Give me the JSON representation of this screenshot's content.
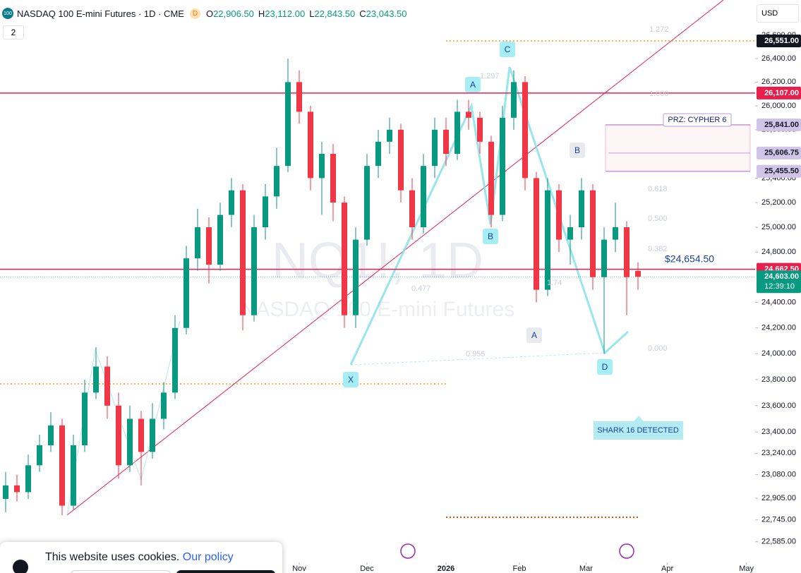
{
  "header": {
    "symbol_badge": "100",
    "title": "NASDAQ 100 E-mini Futures · 1D · CME",
    "delay_badge": "D",
    "ohlc": [
      {
        "key": "O",
        "value": "22,906.50"
      },
      {
        "key": "H",
        "value": "23,112.00"
      },
      {
        "key": "L",
        "value": "22,843.50"
      },
      {
        "key": "C",
        "value": "23,043.50"
      }
    ],
    "layout_count": "2",
    "currency": "USD"
  },
  "cookie": {
    "text": "This website uses cookies.",
    "link": "Our policy"
  },
  "chart_data": {
    "type": "candlestick",
    "watermark_symbol": "NQ1!, 1D",
    "watermark_name": "NASDAQ 100 E-mini Futures",
    "up_color": "#089981",
    "down_color": "#f23645",
    "log_scale": true,
    "grid": false,
    "open": [
      22900,
      23000,
      22950,
      23150,
      23300,
      23450,
      22850,
      23300,
      23700,
      23900,
      23600,
      23150,
      23500,
      23250,
      23500,
      23700,
      24200,
      24750,
      25000,
      24700,
      25100,
      25300,
      24300,
      25000,
      25250,
      25500,
      26200,
      25950,
      25400,
      25600,
      25200,
      24300,
      24900,
      25500,
      25700,
      25800,
      25300,
      25000,
      25500,
      25800,
      25600,
      25950,
      25900,
      25700,
      25100,
      25900,
      26200,
      25400,
      24500,
      25300,
      24900,
      25000,
      25300,
      24600,
      24900,
      25000,
      24650
    ],
    "high": [
      23100,
      23080,
      23230,
      23380,
      23550,
      23500,
      23380,
      23800,
      24050,
      23980,
      23700,
      23600,
      23560,
      23620,
      23780,
      24300,
      24850,
      25150,
      25080,
      25200,
      25400,
      25350,
      25100,
      25350,
      25650,
      26400,
      26300,
      26000,
      25700,
      25680,
      25250,
      25000,
      25600,
      25800,
      25900,
      25850,
      25400,
      25600,
      25900,
      25900,
      26050,
      26050,
      25950,
      25750,
      26000,
      26300,
      26250,
      25450,
      25400,
      25350,
      25100,
      25400,
      25350,
      25000,
      25200,
      25050,
      24720
    ],
    "low": [
      22800,
      22880,
      22900,
      23100,
      23250,
      22780,
      22820,
      23250,
      23650,
      23500,
      23050,
      23100,
      23000,
      23200,
      23420,
      23650,
      24150,
      24650,
      24550,
      24650,
      25000,
      24180,
      24250,
      24900,
      25150,
      25450,
      25850,
      25300,
      25100,
      25050,
      24200,
      24200,
      24850,
      25400,
      25600,
      25200,
      24900,
      24950,
      25400,
      25500,
      25550,
      25800,
      25600,
      25000,
      25050,
      25800,
      25300,
      24400,
      24450,
      24800,
      24700,
      24900,
      24500,
      24000,
      24800,
      24300,
      24500
    ],
    "close": [
      23000,
      22950,
      23150,
      23300,
      23450,
      22850,
      23300,
      23700,
      23900,
      23600,
      23150,
      23500,
      23250,
      23500,
      23700,
      24200,
      24750,
      25000,
      24700,
      25100,
      25300,
      24300,
      25000,
      25250,
      25500,
      26200,
      25950,
      25400,
      25600,
      25200,
      24300,
      24900,
      25500,
      25700,
      25800,
      25300,
      25000,
      25500,
      25800,
      25600,
      25950,
      25900,
      25700,
      25100,
      25900,
      26200,
      25400,
      24500,
      25300,
      24900,
      25000,
      25300,
      24600,
      24900,
      25000,
      24600,
      24603
    ],
    "xlim": [
      -0.5,
      66.375
    ],
    "xticks": [
      {
        "value": 26,
        "label": "Nov"
      },
      {
        "value": 32,
        "label": "Dec"
      },
      {
        "value": 39,
        "label": "2026"
      },
      {
        "value": 45.5,
        "label": "Feb"
      },
      {
        "value": 51.4,
        "label": "Mar"
      },
      {
        "value": 58.6,
        "label": "Apr"
      },
      {
        "value": 65.6,
        "label": "May"
      }
    ],
    "ylim": [
      22440,
      26904
    ],
    "yticks": [
      {
        "value": 26600,
        "label": "26,600.00"
      },
      {
        "value": 26400,
        "label": "26,400.00"
      },
      {
        "value": 26200,
        "label": "26,200.00"
      },
      {
        "value": 26000,
        "label": "26,000.00"
      },
      {
        "value": 25800,
        "label": "25,800.00"
      },
      {
        "value": 25400,
        "label": "25,400.00"
      },
      {
        "value": 25200,
        "label": "25,200.00"
      },
      {
        "value": 25000,
        "label": "25,000.00"
      },
      {
        "value": 24800,
        "label": "24,800.00"
      },
      {
        "value": 24400,
        "label": "24,400.00"
      },
      {
        "value": 24200,
        "label": "24,200.00"
      },
      {
        "value": 24000,
        "label": "24,000.00"
      },
      {
        "value": 23800,
        "label": "23,800.00"
      },
      {
        "value": 23600,
        "label": "23,600.00"
      },
      {
        "value": 23400,
        "label": "23,400.00"
      },
      {
        "value": 23240,
        "label": "23,240.00"
      },
      {
        "value": 23080,
        "label": "23,080.00"
      },
      {
        "value": 22905,
        "label": "22,905.00"
      },
      {
        "value": 22745,
        "label": "22,745.00"
      },
      {
        "value": 22585,
        "label": "22,585.00"
      }
    ],
    "price_lines": [
      {
        "value": 26551,
        "label": "26,551.00",
        "kind": "marker",
        "color": "#131722"
      },
      {
        "value": 26107,
        "label": "26,107.00",
        "kind": "level",
        "color": "#e91e4c"
      },
      {
        "value": 25841,
        "label": "25,841.00",
        "kind": "zone-top",
        "color": "#d1c4e9"
      },
      {
        "value": 25606.75,
        "label": "25,606.75",
        "kind": "zone-mid",
        "color": "#d1c4e9"
      },
      {
        "value": 25455.5,
        "label": "25,455.50",
        "kind": "zone-bottom",
        "color": "#d1c4e9"
      },
      {
        "value": 24662.5,
        "label": "24,662.50",
        "kind": "level",
        "color": "#e91e4c"
      },
      {
        "value": 24603,
        "label": "24,603.00",
        "kind": "last",
        "color": "#089981",
        "countdown": "12:39:10"
      }
    ],
    "zone_label": "PRZ: CYPHER 6",
    "line_label": "$24,654.50",
    "pattern_labels": [
      "A",
      "C",
      "B",
      "X",
      "A",
      "B",
      "D"
    ],
    "fib_labels": [
      "1.272",
      "1.000",
      "0.618",
      "0.500",
      "0.382",
      "0.000",
      "1.297",
      "0.477",
      "1.74",
      "0.955"
    ],
    "notice": "SHARK 16 DETECTED"
  }
}
